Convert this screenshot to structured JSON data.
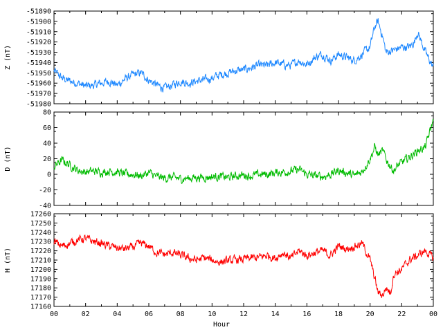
{
  "chart_data": [
    {
      "type": "line",
      "ylabel": "Z (nT)",
      "ylim": [
        -51980,
        -51890
      ],
      "yticks": [
        "-51890",
        "-51900",
        "-51910",
        "-51920",
        "-51930",
        "-51940",
        "-51950",
        "-51960",
        "-51970",
        "-51980"
      ],
      "xlim": [
        0,
        24
      ],
      "grid": false,
      "color": "#1e88ff",
      "series": [
        {
          "x": [
            0,
            0.5,
            1,
            1.5,
            2,
            2.5,
            3,
            3.5,
            4,
            4.5,
            5,
            5.5,
            6,
            6.5,
            7,
            7.5,
            8,
            8.5,
            9,
            9.5,
            10,
            10.5,
            11,
            11.5,
            12,
            12.5,
            13,
            13.5,
            14,
            14.5,
            15,
            15.5,
            16,
            16.5,
            17,
            17.5,
            18,
            18.5,
            19,
            19.5,
            20,
            20.3,
            20.5,
            20.8,
            21,
            21.5,
            22,
            22.5,
            22.8,
            23,
            23.5,
            24
          ],
          "values": [
            -51948,
            -51955,
            -51958,
            -51960,
            -51963,
            -51962,
            -51960,
            -51958,
            -51962,
            -51956,
            -51952,
            -51950,
            -51957,
            -51962,
            -51965,
            -51962,
            -51958,
            -51960,
            -51958,
            -51957,
            -51955,
            -51952,
            -51950,
            -51948,
            -51947,
            -51945,
            -51943,
            -51943,
            -51940,
            -51942,
            -51943,
            -51938,
            -51942,
            -51935,
            -51932,
            -51938,
            -51932,
            -51935,
            -51938,
            -51932,
            -51925,
            -51905,
            -51900,
            -51915,
            -51930,
            -51928,
            -51925,
            -51925,
            -51920,
            -51910,
            -51930,
            -51945
          ]
        }
      ]
    },
    {
      "type": "line",
      "ylabel": "D (nT)",
      "ylim": [
        -40,
        80
      ],
      "yticks": [
        "80",
        "60",
        "40",
        "20",
        "0",
        "-20",
        "-40"
      ],
      "xlim": [
        0,
        24
      ],
      "grid": false,
      "color": "#00bb00",
      "series": [
        {
          "x": [
            0,
            0.5,
            1,
            1.5,
            2,
            2.5,
            3,
            3.5,
            4,
            4.5,
            5,
            5.5,
            6,
            6.5,
            7,
            7.5,
            8,
            8.5,
            9,
            9.5,
            10,
            10.5,
            11,
            11.5,
            12,
            12.5,
            13,
            13.5,
            14,
            14.5,
            15,
            15.5,
            16,
            16.5,
            17,
            17.5,
            18,
            18.5,
            19,
            19.5,
            20,
            20.3,
            20.5,
            20.8,
            21,
            21.3,
            21.5,
            21.8,
            22,
            22.5,
            23,
            23.5,
            24
          ],
          "values": [
            10,
            18,
            12,
            5,
            3,
            4,
            3,
            4,
            3,
            0,
            0,
            -2,
            2,
            -3,
            -5,
            -4,
            -6,
            -5,
            -4,
            -4,
            -3,
            -3,
            -4,
            -2,
            -1,
            -2,
            0,
            0,
            2,
            3,
            4,
            6,
            0,
            -2,
            -3,
            0,
            5,
            2,
            -2,
            4,
            20,
            35,
            25,
            30,
            20,
            10,
            5,
            12,
            15,
            22,
            30,
            35,
            70
          ]
        }
      ]
    },
    {
      "type": "line",
      "ylabel": "H (nT)",
      "xlabel": "Hour",
      "ylim": [
        17160,
        17260
      ],
      "yticks": [
        "17260",
        "17250",
        "17240",
        "17230",
        "17220",
        "17210",
        "17200",
        "17190",
        "17180",
        "17170",
        "17160"
      ],
      "xlim": [
        0,
        24
      ],
      "xticks": [
        "00",
        "02",
        "04",
        "06",
        "08",
        "10",
        "12",
        "14",
        "16",
        "18",
        "20",
        "22",
        "00"
      ],
      "grid": false,
      "color": "#ff0000",
      "series": [
        {
          "x": [
            0,
            0.5,
            1,
            1.5,
            2,
            2.5,
            3,
            3.5,
            4,
            4.5,
            5,
            5.5,
            6,
            6.5,
            7,
            7.5,
            8,
            8.5,
            9,
            9.5,
            10,
            10.5,
            11,
            11.5,
            12,
            12.5,
            13,
            13.5,
            14,
            14.5,
            15,
            15.5,
            16,
            16.5,
            17,
            17.5,
            18,
            18.5,
            19,
            19.5,
            20,
            20.3,
            20.5,
            20.8,
            21,
            21.3,
            21.5,
            22,
            22.5,
            23,
            23.5,
            24
          ],
          "values": [
            17230,
            17225,
            17228,
            17232,
            17233,
            17230,
            17228,
            17225,
            17223,
            17222,
            17224,
            17228,
            17225,
            17218,
            17216,
            17218,
            17215,
            17212,
            17210,
            17212,
            17210,
            17208,
            17209,
            17210,
            17211,
            17212,
            17213,
            17215,
            17212,
            17218,
            17212,
            17220,
            17215,
            17218,
            17220,
            17215,
            17225,
            17222,
            17225,
            17228,
            17210,
            17190,
            17175,
            17172,
            17180,
            17175,
            17195,
            17200,
            17210,
            17215,
            17220,
            17212
          ]
        }
      ]
    }
  ]
}
